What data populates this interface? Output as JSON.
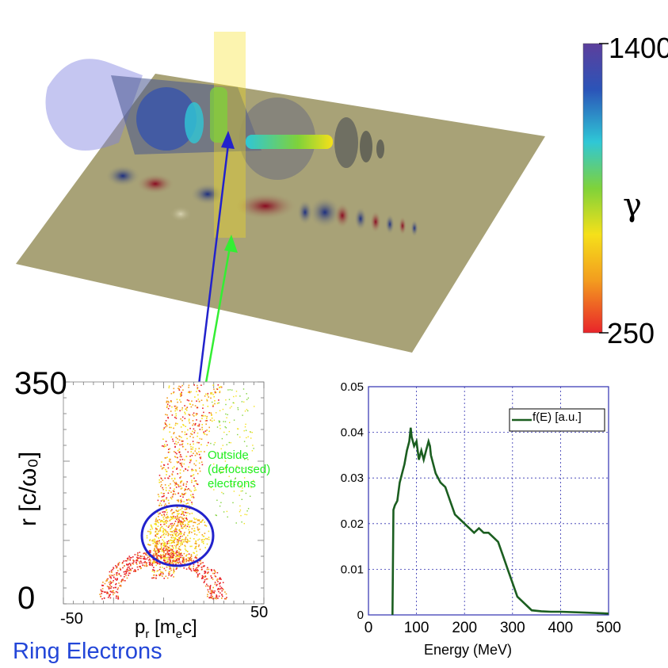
{
  "figure": {
    "colorbar": {
      "max_label": "1400",
      "min_label": "250",
      "symbol": "γ",
      "colors": [
        "#e8242a",
        "#f39c1f",
        "#f5e01a",
        "#7fd23a",
        "#2fc7d6",
        "#2b54b8",
        "#5c3f9c"
      ]
    },
    "caption": "Ring Electrons",
    "annotation": "Outside (defocused) electrons",
    "arrow_colors": {
      "blue": "#2222cc",
      "green": "#33ee33"
    }
  },
  "chart_data": [
    {
      "type": "scatter",
      "title": "",
      "xlabel": "p_r [m_e c]",
      "xlabel_main": "p",
      "xlabel_sub1": "r",
      "xlabel_mid": " [m",
      "xlabel_sub2": "e",
      "xlabel_end": "c]",
      "ylabel": "r  [c/ω₀]",
      "xlim": [
        -50,
        50
      ],
      "ylim": [
        0,
        350
      ],
      "x_tick_labels": [
        "-50",
        "50"
      ],
      "y_tick_labels": [
        "0",
        "350"
      ]
    },
    {
      "type": "line",
      "xlabel": "Energy (MeV)",
      "ylabel": "",
      "xlim": [
        0,
        500
      ],
      "ylim": [
        0,
        0.05
      ],
      "x_ticks": [
        "0",
        "100",
        "200",
        "300",
        "400",
        "500"
      ],
      "y_ticks": [
        "0",
        "0.01",
        "0.02",
        "0.03",
        "0.04",
        "0.05"
      ],
      "grid": true,
      "legend_position": "top-right",
      "series": [
        {
          "name": "f(E) [a.u.]",
          "color": "#1b5e20",
          "x": [
            50,
            52,
            55,
            60,
            65,
            70,
            75,
            80,
            85,
            88,
            90,
            95,
            100,
            105,
            110,
            115,
            120,
            125,
            128,
            130,
            135,
            140,
            145,
            150,
            160,
            170,
            180,
            190,
            200,
            210,
            220,
            230,
            240,
            250,
            260,
            270,
            280,
            290,
            300,
            310,
            320,
            330,
            340,
            360,
            380,
            400,
            450,
            500
          ],
          "y": [
            0,
            0.023,
            0.024,
            0.025,
            0.029,
            0.031,
            0.033,
            0.036,
            0.038,
            0.041,
            0.039,
            0.037,
            0.038,
            0.034,
            0.036,
            0.034,
            0.036,
            0.038,
            0.037,
            0.035,
            0.033,
            0.031,
            0.03,
            0.029,
            0.028,
            0.025,
            0.022,
            0.021,
            0.02,
            0.019,
            0.018,
            0.019,
            0.018,
            0.018,
            0.017,
            0.016,
            0.013,
            0.01,
            0.007,
            0.004,
            0.003,
            0.002,
            0.001,
            0.0008,
            0.0007,
            0.0007,
            0.0005,
            0.0003
          ]
        }
      ]
    }
  ]
}
